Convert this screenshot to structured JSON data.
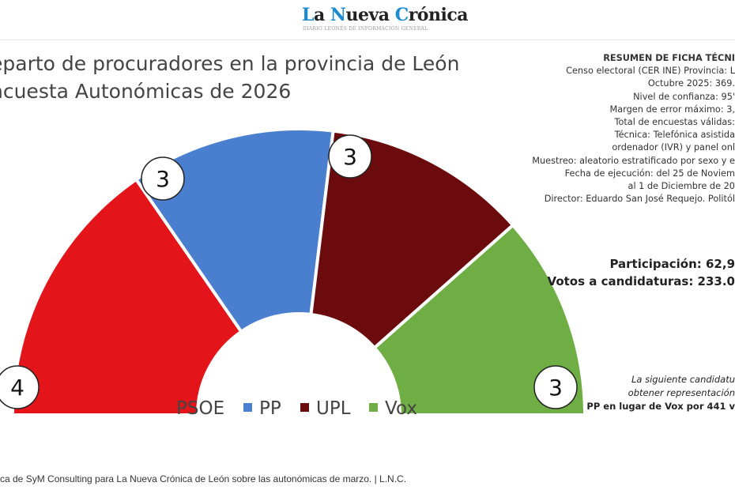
{
  "header": {
    "logo_parts": [
      "L",
      "a ",
      "N",
      "ueva ",
      "C",
      "rónica"
    ],
    "tagline": "DIARIO LEONÉS DE INFORMACIÓN GENERAL"
  },
  "chart_data": {
    "type": "hemicycle",
    "title_line1": "eparto de procuradores en la provincia de León",
    "title_line2": "ncuesta Autonómicas de 2026",
    "total_seats": 13,
    "parties": [
      {
        "name": "PSOE",
        "seats": 4,
        "label": "4",
        "color": "#e3151b"
      },
      {
        "name": "PP",
        "seats": 3,
        "label": "3",
        "color": "#4a7fd0"
      },
      {
        "name": "UPL",
        "seats": 3,
        "label": "3",
        "color": "#6b0b0e"
      },
      {
        "name": "Vox",
        "seats": 3,
        "label": "3",
        "color": "#6fad45"
      }
    ],
    "legend_placement": "bottom"
  },
  "ficha": {
    "heading": "RESUMEN DE FICHA TÉCNI",
    "lines": [
      "Censo electoral (CER INE) Provincia: L",
      "Octubre 2025: 369.",
      "Nivel de confianza: 95'",
      "Margen de error máximo: 3,",
      "Total de encuestas válidas:",
      "Técnica: Telefónica asistida",
      "ordenador (IVR) y panel onl",
      "Muestreo: aleatorio estratificado por sexo y e",
      "Fecha de ejecución: del 25 de Noviem",
      "al 1 de Diciembre de 20",
      "Director: Eduardo San José Requejo. Politól"
    ]
  },
  "summary": {
    "participation": "Participación: 62,9",
    "votes": "Votos a candidaturas: 233.0"
  },
  "note": {
    "line1": "La siguiente candidatu",
    "line2": "obtener representación",
    "line3": "PP en lugar de Vox por 441 v"
  },
  "caption": "ca de SyM Consulting para La Nueva Crónica de León sobre las autonómicas de marzo. | L.N.C."
}
